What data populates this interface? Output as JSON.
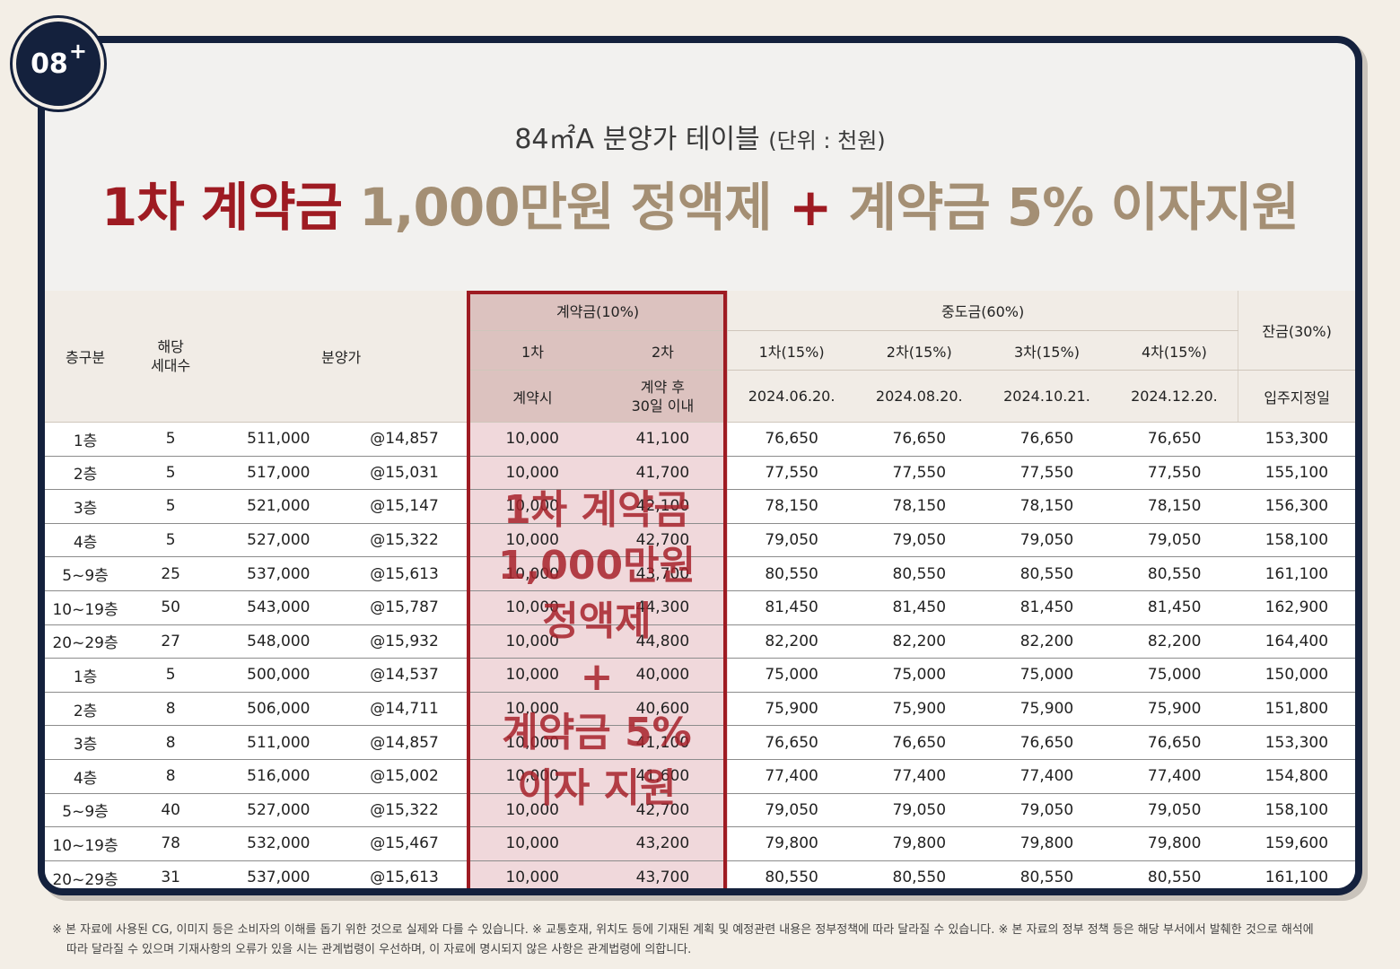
{
  "badge": {
    "number": "08",
    "plus": "+"
  },
  "title": {
    "subtitle": "84㎡A 분양가 테이블",
    "unit": "(단위 : 천원)",
    "headline_red": "1차 계약금",
    "headline_tan1": "1,000만원 정액제",
    "headline_plus": "+",
    "headline_tan2": "계약금 5% 이자지원"
  },
  "table": {
    "floor_header": "층구분",
    "units_header": "해당\n세대수",
    "price_header": "분양가",
    "deposit_header": "계약금(10%)",
    "deposit_1": "1차",
    "deposit_2": "2차",
    "deposit_1_when": "계약시",
    "deposit_2_when": "계약 후\n30일 이내",
    "middle_header": "중도금(60%)",
    "middle_1": "1차(15%)",
    "middle_2": "2차(15%)",
    "middle_3": "3차(15%)",
    "middle_4": "4차(15%)",
    "middle_1_date": "2024.06.20.",
    "middle_2_date": "2024.08.20.",
    "middle_3_date": "2024.10.21.",
    "middle_4_date": "2024.12.20.",
    "balance_header": "잔금(30%)",
    "balance_when": "입주지정일",
    "rows": [
      [
        "1층",
        "5",
        "511,000",
        "@14,857",
        "10,000",
        "41,100",
        "76,650",
        "76,650",
        "76,650",
        "76,650",
        "153,300"
      ],
      [
        "2층",
        "5",
        "517,000",
        "@15,031",
        "10,000",
        "41,700",
        "77,550",
        "77,550",
        "77,550",
        "77,550",
        "155,100"
      ],
      [
        "3층",
        "5",
        "521,000",
        "@15,147",
        "10,000",
        "42,100",
        "78,150",
        "78,150",
        "78,150",
        "78,150",
        "156,300"
      ],
      [
        "4층",
        "5",
        "527,000",
        "@15,322",
        "10,000",
        "42,700",
        "79,050",
        "79,050",
        "79,050",
        "79,050",
        "158,100"
      ],
      [
        "5~9층",
        "25",
        "537,000",
        "@15,613",
        "10,000",
        "43,700",
        "80,550",
        "80,550",
        "80,550",
        "80,550",
        "161,100"
      ],
      [
        "10~19층",
        "50",
        "543,000",
        "@15,787",
        "10,000",
        "44,300",
        "81,450",
        "81,450",
        "81,450",
        "81,450",
        "162,900"
      ],
      [
        "20~29층",
        "27",
        "548,000",
        "@15,932",
        "10,000",
        "44,800",
        "82,200",
        "82,200",
        "82,200",
        "82,200",
        "164,400"
      ],
      [
        "1층",
        "5",
        "500,000",
        "@14,537",
        "10,000",
        "40,000",
        "75,000",
        "75,000",
        "75,000",
        "75,000",
        "150,000"
      ],
      [
        "2층",
        "8",
        "506,000",
        "@14,711",
        "10,000",
        "40,600",
        "75,900",
        "75,900",
        "75,900",
        "75,900",
        "151,800"
      ],
      [
        "3층",
        "8",
        "511,000",
        "@14,857",
        "10,000",
        "41,100",
        "76,650",
        "76,650",
        "76,650",
        "76,650",
        "153,300"
      ],
      [
        "4층",
        "8",
        "516,000",
        "@15,002",
        "10,000",
        "41,600",
        "77,400",
        "77,400",
        "77,400",
        "77,400",
        "154,800"
      ],
      [
        "5~9층",
        "40",
        "527,000",
        "@15,322",
        "10,000",
        "42,700",
        "79,050",
        "79,050",
        "79,050",
        "79,050",
        "158,100"
      ],
      [
        "10~19층",
        "78",
        "532,000",
        "@15,467",
        "10,000",
        "43,200",
        "79,800",
        "79,800",
        "79,800",
        "79,800",
        "159,600"
      ],
      [
        "20~29층",
        "31",
        "537,000",
        "@15,613",
        "10,000",
        "43,700",
        "80,550",
        "80,550",
        "80,550",
        "80,550",
        "161,100"
      ]
    ]
  },
  "overlay": {
    "line1": "1차 계약금",
    "line2": "1,000만원",
    "line3": "정액제",
    "line4": "+",
    "line5": "계약금 5%",
    "line6": "이자 지원"
  },
  "footnote": {
    "line1": "※ 본 자료에 사용된 CG, 이미지 등은 소비자의 이해를 돕기 위한 것으로 실제와 다를 수 있습니다. ※ 교통호재, 위치도 등에 기재된 계획 및 예정관련 내용은 정부정책에 따라 달라질 수 있습니다. ※ 본 자료의 정부 정책 등은 해당 부서에서 발췌한 것으로 해석에",
    "line2": "따라 달라질 수 있으며 기재사항의 오류가 있을 시는 관계법령이 우선하며, 이 자료에 명시되지 않은 사항은 관계법령에 의합니다."
  },
  "colors": {
    "navy": "#14213d",
    "brand_red": "#9e1b22",
    "tan": "#a48f74",
    "deposit_fill": "#f0d8db"
  }
}
